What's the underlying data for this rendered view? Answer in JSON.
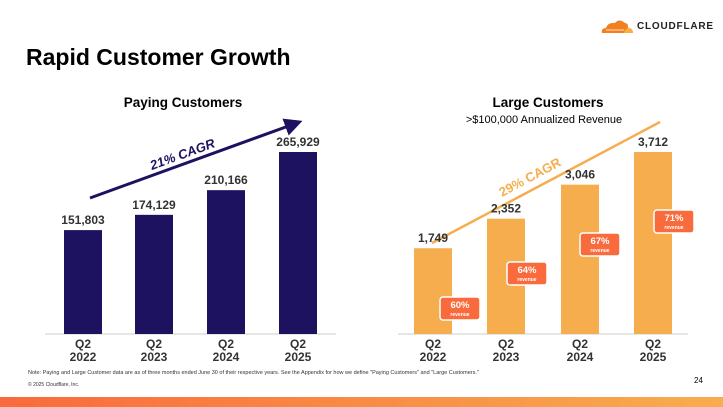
{
  "slide": {
    "title": "Rapid Customer Growth",
    "logo_text": "CLOUDFLARE",
    "page_number": "24",
    "note": "Note: Paying and Large Customer data are as of three months ended June 30 of their respective years. See the Appendix for how we define \"Paying Customers\" and \"Large Customers.\"",
    "copyright": "© 2025 Cloudflare, Inc."
  },
  "colors": {
    "navy": "#1c1260",
    "orange": "#f6ad4e",
    "badge": "#f96a3c"
  },
  "chart_data": [
    {
      "type": "bar",
      "title": "Paying Customers",
      "subtitle": "",
      "categories": [
        "Q2\n2022",
        "Q2\n2023",
        "Q2\n2024",
        "Q2\n2025"
      ],
      "values": [
        151803,
        174129,
        210166,
        265929
      ],
      "value_labels": [
        "151,803",
        "174,129",
        "210,166",
        "265,929"
      ],
      "annotation": "21% CAGR",
      "ylim": [
        0,
        265929
      ]
    },
    {
      "type": "bar",
      "title": "Large Customers",
      "subtitle": ">$100,000 Annualized Revenue",
      "categories": [
        "Q2\n2022",
        "Q2\n2023",
        "Q2\n2024",
        "Q2\n2025"
      ],
      "values": [
        1749,
        2352,
        3046,
        3712
      ],
      "value_labels": [
        "1,749",
        "2,352",
        "3,046",
        "3,712"
      ],
      "badges": [
        {
          "pct": "60%",
          "label": "revenue"
        },
        {
          "pct": "64%",
          "label": "revenue"
        },
        {
          "pct": "67%",
          "label": "revenue"
        },
        {
          "pct": "71%",
          "label": "revenue"
        }
      ],
      "annotation": "29% CAGR",
      "ylim": [
        0,
        3712
      ]
    }
  ]
}
